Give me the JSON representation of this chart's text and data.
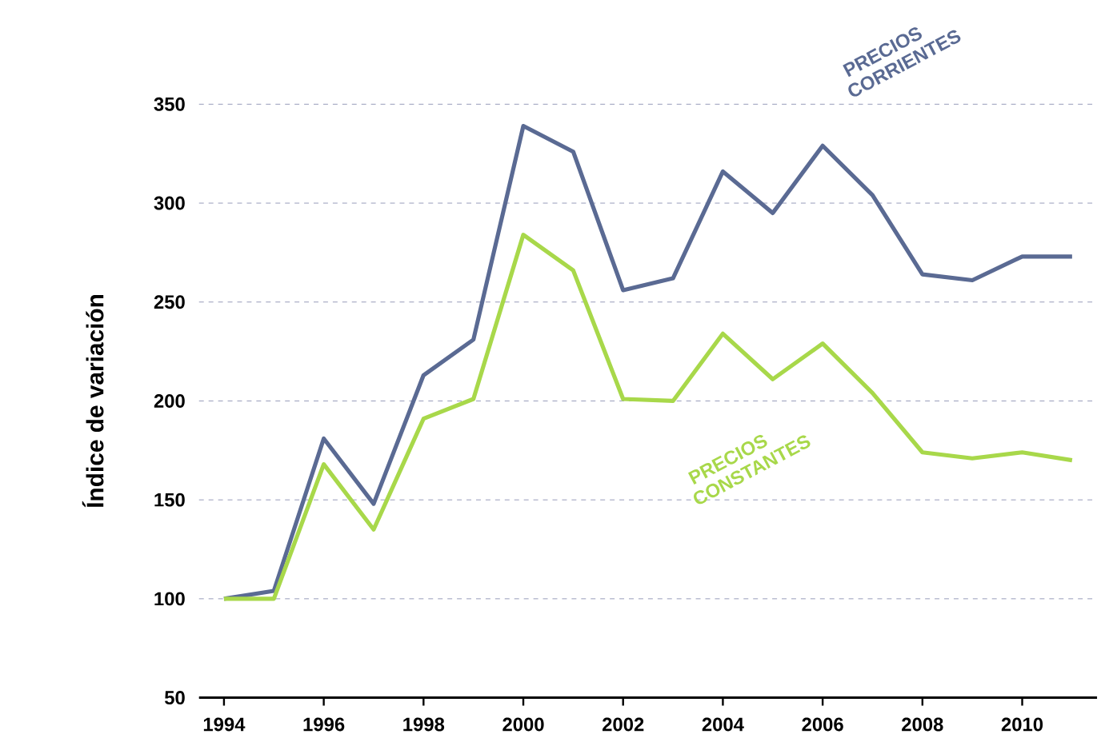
{
  "chart_data": {
    "type": "line",
    "ylabel": "Índice de variación",
    "x": [
      1994,
      1995,
      1996,
      1997,
      1998,
      1999,
      2000,
      2001,
      2002,
      2003,
      2004,
      2005,
      2006,
      2007,
      2008,
      2009,
      2010,
      2011
    ],
    "xlim": [
      1993.5,
      2011.5
    ],
    "xticks": [
      1994,
      1996,
      1998,
      2000,
      2002,
      2004,
      2006,
      2008,
      2010
    ],
    "ylim": [
      50,
      350
    ],
    "yticks": [
      50,
      100,
      150,
      200,
      250,
      300,
      350
    ],
    "grid": "y",
    "series": [
      {
        "name": "PRECIOS CORRIENTES",
        "color": "#5a6a93",
        "values": [
          100,
          104,
          181,
          148,
          213,
          231,
          339,
          326,
          256,
          262,
          316,
          295,
          329,
          304,
          264,
          261,
          273,
          273
        ]
      },
      {
        "name": "PRECIOS CONSTANTES",
        "color": "#a8d84a",
        "values": [
          100,
          100,
          168,
          135,
          191,
          201,
          284,
          266,
          201,
          200,
          234,
          211,
          229,
          204,
          174,
          171,
          174,
          170
        ]
      }
    ]
  }
}
